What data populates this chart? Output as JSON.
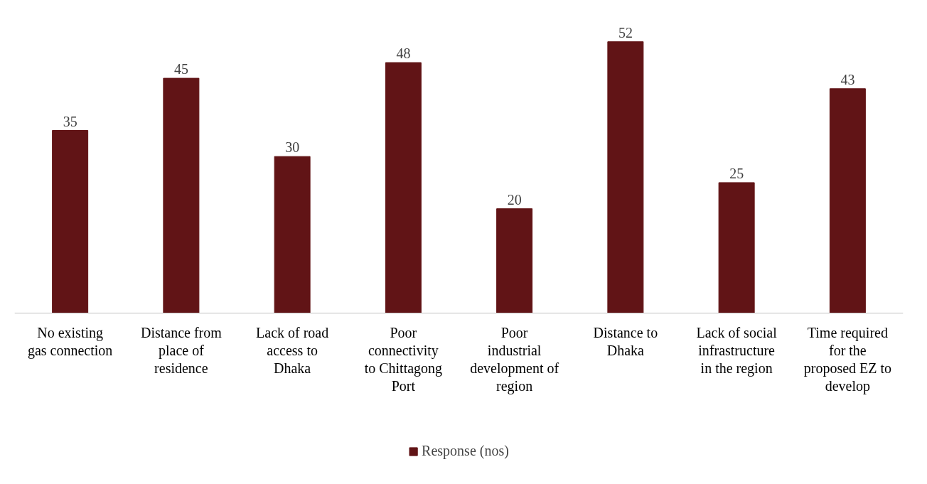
{
  "chart_data": {
    "type": "bar",
    "categories": [
      "No existing gas connection",
      "Distance from place of residence",
      "Lack of road access to Dhaka",
      "Poor connectivity to Chittagong Port",
      "Poor industrial development of region",
      "Distance to Dhaka",
      "Lack of social infrastructure in the region",
      "Time required for the proposed EZ to develop"
    ],
    "series": [
      {
        "name": "Response (nos)",
        "color": "#611416",
        "values": [
          35,
          45,
          30,
          48,
          20,
          52,
          25,
          43
        ]
      }
    ],
    "data_labels": true,
    "grid": false,
    "legend": "bottom"
  }
}
